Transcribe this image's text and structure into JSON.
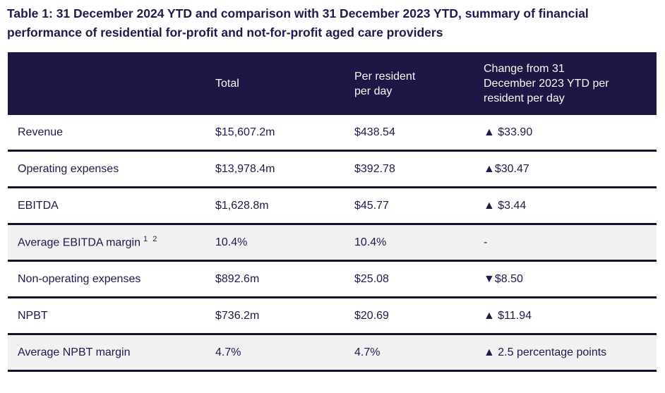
{
  "title": "Table 1: 31 December 2024 YTD and comparison with 31 December 2023 YTD, summary of financial performance of residential for-profit and not-for-profit aged care providers",
  "table": {
    "columns": {
      "label": "",
      "total": "Total",
      "per_resident_per_day": "Per resident per day",
      "change": "Change from 31 December 2023 YTD per resident per day"
    },
    "rows": [
      {
        "label": "Revenue",
        "total": "$15,607.2m",
        "per_resident_per_day": "$438.54",
        "change": "▲ $33.90",
        "highlighted": false
      },
      {
        "label": "Operating expenses",
        "total": "$13,978.4m",
        "per_resident_per_day": "$392.78",
        "change": "▲$30.47",
        "highlighted": false
      },
      {
        "label": "EBITDA",
        "total": "$1,628.8m",
        "per_resident_per_day": "$45.77",
        "change": "▲ $3.44",
        "highlighted": false
      },
      {
        "label": "Average EBITDA margin",
        "superscript": "1 2",
        "total": "10.4%",
        "per_resident_per_day": "10.4%",
        "change": "-",
        "highlighted": true
      },
      {
        "label": "Non-operating expenses",
        "total": "$892.6m",
        "per_resident_per_day": "$25.08",
        "change": "▼$8.50",
        "highlighted": false
      },
      {
        "label": "NPBT",
        "total": "$736.2m",
        "per_resident_per_day": "$20.69",
        "change": "▲ $11.94",
        "highlighted": false
      },
      {
        "label": "Average NPBT margin",
        "total": "4.7%",
        "per_resident_per_day": "4.7%",
        "change": "▲ 2.5 percentage points",
        "highlighted": true
      }
    ]
  },
  "colors": {
    "header_background": "#1e1745",
    "header_text": "#faf7f1",
    "body_text": "#1f1a4e",
    "row_highlight_background": "#f1f1f1",
    "row_divider": "#17102e",
    "indicator_up": "#1f1a4e",
    "indicator_down": "#1f1a4e"
  }
}
